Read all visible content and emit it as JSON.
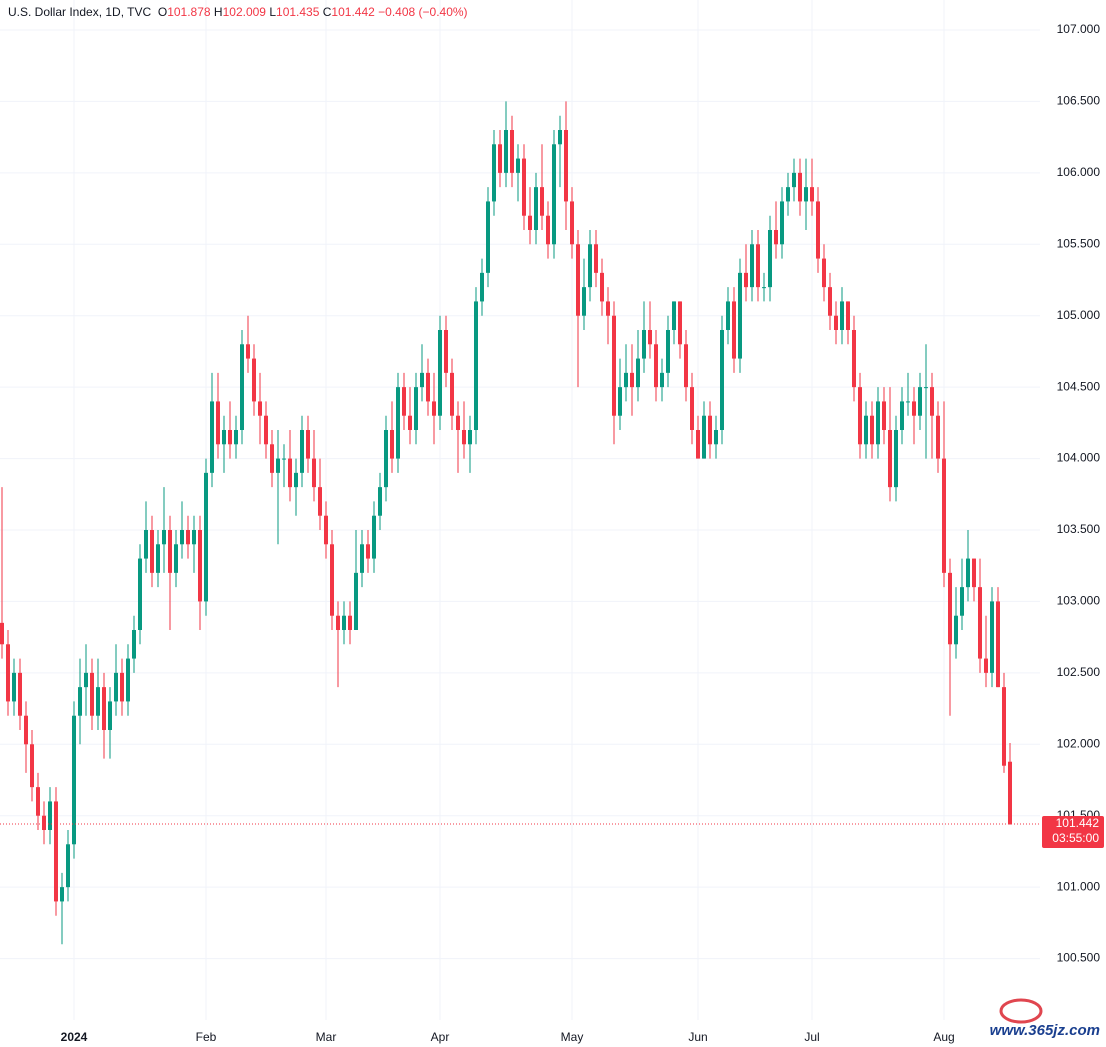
{
  "chart_data": {
    "type": "candlestick",
    "title": "U.S. Dollar Index, 1D, TVC",
    "header": {
      "open_label": "O",
      "open": 101.878,
      "high_label": "H",
      "high": 102.009,
      "low_label": "L",
      "low": 101.435,
      "close_label": "C",
      "close": 101.442,
      "change": "−0.408 (−0.40%)"
    },
    "last_price": 101.442,
    "countdown": "03:55:00",
    "watermark": "www.365jz.com",
    "up_color": "#089981",
    "down_color": "#f23645",
    "grid": true,
    "ylim": [
      100.07,
      107.21
    ],
    "yticks": [
      {
        "value": 100.5,
        "label": "100.500"
      },
      {
        "value": 101,
        "label": "101.000"
      },
      {
        "value": 101.5,
        "label": "101.500"
      },
      {
        "value": 102,
        "label": "102.000"
      },
      {
        "value": 102.5,
        "label": "102.500"
      },
      {
        "value": 103,
        "label": "103.000"
      },
      {
        "value": 103.5,
        "label": "103.500"
      },
      {
        "value": 104,
        "label": "104.000"
      },
      {
        "value": 104.5,
        "label": "104.500"
      },
      {
        "value": 105,
        "label": "105.000"
      },
      {
        "value": 105.5,
        "label": "105.500"
      },
      {
        "value": 106,
        "label": "106.000"
      },
      {
        "value": 106.5,
        "label": "106.500"
      },
      {
        "value": 107,
        "label": "107.000"
      }
    ],
    "categories": [
      null,
      null,
      null,
      null,
      null,
      null,
      null,
      null,
      null,
      null,
      null,
      null,
      "2024",
      null,
      null,
      null,
      null,
      null,
      null,
      null,
      null,
      null,
      null,
      null,
      null,
      null,
      null,
      null,
      null,
      null,
      null,
      null,
      null,
      null,
      "Feb",
      null,
      null,
      null,
      null,
      null,
      null,
      null,
      null,
      null,
      null,
      null,
      null,
      null,
      null,
      null,
      null,
      null,
      null,
      null,
      "Mar",
      null,
      null,
      null,
      null,
      null,
      null,
      null,
      null,
      null,
      null,
      null,
      null,
      null,
      null,
      null,
      null,
      null,
      null,
      "Apr",
      null,
      null,
      null,
      null,
      null,
      null,
      null,
      null,
      null,
      null,
      null,
      null,
      null,
      null,
      null,
      null,
      null,
      null,
      null,
      null,
      null,
      "May",
      null,
      null,
      null,
      null,
      null,
      null,
      null,
      null,
      null,
      null,
      null,
      null,
      null,
      null,
      null,
      null,
      null,
      null,
      null,
      null,
      "Jun",
      null,
      null,
      null,
      null,
      null,
      null,
      null,
      null,
      null,
      null,
      null,
      null,
      null,
      null,
      null,
      null,
      null,
      null,
      "Jul",
      null,
      null,
      null,
      null,
      null,
      null,
      null,
      null,
      null,
      null,
      null,
      null,
      null,
      null,
      null,
      null,
      null,
      null,
      null,
      null,
      null,
      "Aug",
      null,
      null,
      null,
      null,
      null,
      null,
      null,
      null,
      null,
      null,
      null
    ],
    "ohlc": [
      [
        102.85,
        103.8,
        102.6,
        102.7
      ],
      [
        102.7,
        102.8,
        102.2,
        102.3
      ],
      [
        102.3,
        102.6,
        102.2,
        102.5
      ],
      [
        102.5,
        102.6,
        102.1,
        102.2
      ],
      [
        102.2,
        102.3,
        101.8,
        102.0
      ],
      [
        102.0,
        102.1,
        101.6,
        101.7
      ],
      [
        101.7,
        101.8,
        101.4,
        101.5
      ],
      [
        101.5,
        101.6,
        101.3,
        101.4
      ],
      [
        101.4,
        101.7,
        101.3,
        101.6
      ],
      [
        101.6,
        101.7,
        100.8,
        100.9
      ],
      [
        100.9,
        101.1,
        100.6,
        101.0
      ],
      [
        101.0,
        101.4,
        100.9,
        101.3
      ],
      [
        101.3,
        102.3,
        101.2,
        102.2
      ],
      [
        102.2,
        102.6,
        102.0,
        102.4
      ],
      [
        102.4,
        102.7,
        102.2,
        102.5
      ],
      [
        102.5,
        102.6,
        102.1,
        102.2
      ],
      [
        102.2,
        102.6,
        102.1,
        102.4
      ],
      [
        102.4,
        102.5,
        101.9,
        102.1
      ],
      [
        102.1,
        102.4,
        101.9,
        102.3
      ],
      [
        102.3,
        102.7,
        102.2,
        102.5
      ],
      [
        102.5,
        102.6,
        102.2,
        102.3
      ],
      [
        102.3,
        102.7,
        102.2,
        102.6
      ],
      [
        102.6,
        102.9,
        102.5,
        102.8
      ],
      [
        102.8,
        103.4,
        102.7,
        103.3
      ],
      [
        103.3,
        103.7,
        103.2,
        103.5
      ],
      [
        103.5,
        103.6,
        103.1,
        103.2
      ],
      [
        103.2,
        103.5,
        103.1,
        103.4
      ],
      [
        103.4,
        103.8,
        103.2,
        103.5
      ],
      [
        103.5,
        103.6,
        102.8,
        103.2
      ],
      [
        103.2,
        103.5,
        103.1,
        103.4
      ],
      [
        103.4,
        103.7,
        103.3,
        103.5
      ],
      [
        103.5,
        103.6,
        103.3,
        103.4
      ],
      [
        103.4,
        103.6,
        103.2,
        103.5
      ],
      [
        103.5,
        103.6,
        102.8,
        103.0
      ],
      [
        103.0,
        104.0,
        102.9,
        103.9
      ],
      [
        103.9,
        104.6,
        103.8,
        104.4
      ],
      [
        104.4,
        104.6,
        104.0,
        104.1
      ],
      [
        104.1,
        104.3,
        103.9,
        104.2
      ],
      [
        104.2,
        104.4,
        104.0,
        104.1
      ],
      [
        104.1,
        104.3,
        104.0,
        104.2
      ],
      [
        104.2,
        104.9,
        104.1,
        104.8
      ],
      [
        104.8,
        105.0,
        104.6,
        104.7
      ],
      [
        104.7,
        104.8,
        104.3,
        104.4
      ],
      [
        104.4,
        104.6,
        104.1,
        104.3
      ],
      [
        104.3,
        104.4,
        104.0,
        104.1
      ],
      [
        104.1,
        104.2,
        103.8,
        103.9
      ],
      [
        103.9,
        104.2,
        103.4,
        104.0
      ],
      [
        104.0,
        104.1,
        103.8,
        104.0
      ],
      [
        104.0,
        104.2,
        103.7,
        103.8
      ],
      [
        103.8,
        104.0,
        103.6,
        103.9
      ],
      [
        103.9,
        104.3,
        103.8,
        104.2
      ],
      [
        104.2,
        104.3,
        103.9,
        104.0
      ],
      [
        104.0,
        104.2,
        103.7,
        103.8
      ],
      [
        103.8,
        104.0,
        103.5,
        103.6
      ],
      [
        103.6,
        103.7,
        103.3,
        103.4
      ],
      [
        103.4,
        103.5,
        102.8,
        102.9
      ],
      [
        102.9,
        103.0,
        102.4,
        102.8
      ],
      [
        102.8,
        103.0,
        102.7,
        102.9
      ],
      [
        102.9,
        103.0,
        102.7,
        102.8
      ],
      [
        102.8,
        103.5,
        102.8,
        103.2
      ],
      [
        103.2,
        103.5,
        103.1,
        103.4
      ],
      [
        103.4,
        103.5,
        103.2,
        103.3
      ],
      [
        103.3,
        103.7,
        103.2,
        103.6
      ],
      [
        103.6,
        103.9,
        103.5,
        103.8
      ],
      [
        103.8,
        104.3,
        103.7,
        104.2
      ],
      [
        104.2,
        104.4,
        103.9,
        104.0
      ],
      [
        104.0,
        104.6,
        103.9,
        104.5
      ],
      [
        104.5,
        104.6,
        104.2,
        104.3
      ],
      [
        104.3,
        104.5,
        104.1,
        104.2
      ],
      [
        104.2,
        104.6,
        104.1,
        104.5
      ],
      [
        104.5,
        104.8,
        104.4,
        104.6
      ],
      [
        104.6,
        104.7,
        104.3,
        104.4
      ],
      [
        104.4,
        104.6,
        104.1,
        104.3
      ],
      [
        104.3,
        105.0,
        104.2,
        104.9
      ],
      [
        104.9,
        105.0,
        104.5,
        104.6
      ],
      [
        104.6,
        104.7,
        104.2,
        104.3
      ],
      [
        104.3,
        104.4,
        103.9,
        104.2
      ],
      [
        104.2,
        104.4,
        104.0,
        104.1
      ],
      [
        104.1,
        104.3,
        103.9,
        104.2
      ],
      [
        104.2,
        105.2,
        104.1,
        105.1
      ],
      [
        105.1,
        105.4,
        105.0,
        105.3
      ],
      [
        105.3,
        105.9,
        105.2,
        105.8
      ],
      [
        105.8,
        106.3,
        105.7,
        106.2
      ],
      [
        106.2,
        106.3,
        105.9,
        106.0
      ],
      [
        106.0,
        106.5,
        105.9,
        106.3
      ],
      [
        106.3,
        106.4,
        105.9,
        106.0
      ],
      [
        106.0,
        106.2,
        105.8,
        106.1
      ],
      [
        106.1,
        106.2,
        105.6,
        105.7
      ],
      [
        105.7,
        105.9,
        105.5,
        105.6
      ],
      [
        105.6,
        106.0,
        105.5,
        105.9
      ],
      [
        105.9,
        106.2,
        105.6,
        105.7
      ],
      [
        105.7,
        105.8,
        105.4,
        105.5
      ],
      [
        105.5,
        106.3,
        105.4,
        106.2
      ],
      [
        106.2,
        106.4,
        105.9,
        106.3
      ],
      [
        106.3,
        106.5,
        105.6,
        105.8
      ],
      [
        105.8,
        105.9,
        105.4,
        105.5
      ],
      [
        105.5,
        105.6,
        104.5,
        105.0
      ],
      [
        105.0,
        105.4,
        104.9,
        105.2
      ],
      [
        105.2,
        105.6,
        105.1,
        105.5
      ],
      [
        105.5,
        105.6,
        105.2,
        105.3
      ],
      [
        105.3,
        105.4,
        105.0,
        105.1
      ],
      [
        105.1,
        105.2,
        104.8,
        105.0
      ],
      [
        105.0,
        105.1,
        104.1,
        104.3
      ],
      [
        104.3,
        104.7,
        104.2,
        104.5
      ],
      [
        104.5,
        104.8,
        104.4,
        104.6
      ],
      [
        104.6,
        104.8,
        104.3,
        104.5
      ],
      [
        104.5,
        104.9,
        104.4,
        104.7
      ],
      [
        104.7,
        105.1,
        104.6,
        104.9
      ],
      [
        104.9,
        105.1,
        104.7,
        104.8
      ],
      [
        104.8,
        104.9,
        104.4,
        104.5
      ],
      [
        104.5,
        104.7,
        104.4,
        104.6
      ],
      [
        104.6,
        105.0,
        104.5,
        104.9
      ],
      [
        104.9,
        105.1,
        104.8,
        105.1
      ],
      [
        105.1,
        105.1,
        104.7,
        104.8
      ],
      [
        104.8,
        104.9,
        104.4,
        104.5
      ],
      [
        104.5,
        104.6,
        104.1,
        104.2
      ],
      [
        104.2,
        104.3,
        104.0,
        104.0
      ],
      [
        104.0,
        104.4,
        104.0,
        104.3
      ],
      [
        104.3,
        104.4,
        104.0,
        104.1
      ],
      [
        104.1,
        104.3,
        104.0,
        104.2
      ],
      [
        104.2,
        105.0,
        104.1,
        104.9
      ],
      [
        104.9,
        105.2,
        104.8,
        105.1
      ],
      [
        105.1,
        105.2,
        104.6,
        104.7
      ],
      [
        104.7,
        105.4,
        104.6,
        105.3
      ],
      [
        105.3,
        105.5,
        105.1,
        105.2
      ],
      [
        105.2,
        105.6,
        105.1,
        105.5
      ],
      [
        105.5,
        105.6,
        105.1,
        105.2
      ],
      [
        105.2,
        105.3,
        105.1,
        105.2
      ],
      [
        105.2,
        105.7,
        105.1,
        105.6
      ],
      [
        105.6,
        105.8,
        105.4,
        105.5
      ],
      [
        105.5,
        105.9,
        105.4,
        105.8
      ],
      [
        105.8,
        106.0,
        105.7,
        105.9
      ],
      [
        105.9,
        106.1,
        105.8,
        106.0
      ],
      [
        106.0,
        106.1,
        105.7,
        105.8
      ],
      [
        105.8,
        106.1,
        105.6,
        105.9
      ],
      [
        105.9,
        106.1,
        105.7,
        105.8
      ],
      [
        105.8,
        105.9,
        105.3,
        105.4
      ],
      [
        105.4,
        105.5,
        105.1,
        105.2
      ],
      [
        105.2,
        105.3,
        104.9,
        105.0
      ],
      [
        105.0,
        105.1,
        104.8,
        104.9
      ],
      [
        104.9,
        105.2,
        104.8,
        105.1
      ],
      [
        105.1,
        105.1,
        104.8,
        104.9
      ],
      [
        104.9,
        105.0,
        104.4,
        104.5
      ],
      [
        104.5,
        104.6,
        104.0,
        104.1
      ],
      [
        104.1,
        104.4,
        104.0,
        104.3
      ],
      [
        104.3,
        104.4,
        104.0,
        104.1
      ],
      [
        104.1,
        104.5,
        104.0,
        104.4
      ],
      [
        104.4,
        104.5,
        104.1,
        104.2
      ],
      [
        104.2,
        104.5,
        103.7,
        103.8
      ],
      [
        103.8,
        104.3,
        103.7,
        104.2
      ],
      [
        104.2,
        104.5,
        104.1,
        104.4
      ],
      [
        104.4,
        104.6,
        104.3,
        104.4
      ],
      [
        104.4,
        104.5,
        104.1,
        104.3
      ],
      [
        104.3,
        104.6,
        104.2,
        104.5
      ],
      [
        104.5,
        104.8,
        104.0,
        104.5
      ],
      [
        104.5,
        104.6,
        104.0,
        104.3
      ],
      [
        104.3,
        104.4,
        103.9,
        104.0
      ],
      [
        104.0,
        104.4,
        103.1,
        103.2
      ],
      [
        103.2,
        103.3,
        102.2,
        102.7
      ],
      [
        102.7,
        103.1,
        102.6,
        102.9
      ],
      [
        102.9,
        103.3,
        102.8,
        103.1
      ],
      [
        103.1,
        103.5,
        103.0,
        103.3
      ],
      [
        103.3,
        103.3,
        103.0,
        103.1
      ],
      [
        103.1,
        103.3,
        102.5,
        102.6
      ],
      [
        102.6,
        102.9,
        102.4,
        102.5
      ],
      [
        102.5,
        103.1,
        102.4,
        103.0
      ],
      [
        103.0,
        103.1,
        102.4,
        102.4
      ],
      [
        102.4,
        102.5,
        101.8,
        101.85
      ],
      [
        101.878,
        102.009,
        101.435,
        101.442
      ]
    ]
  }
}
